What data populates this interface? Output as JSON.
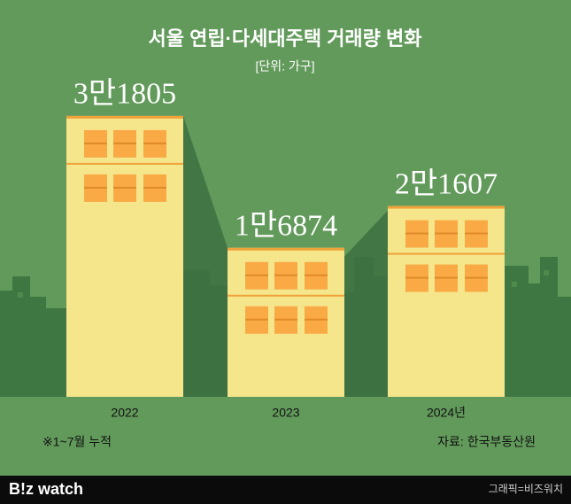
{
  "chart_data": {
    "type": "bar",
    "title": "서울 연립·다세대주택 거래량 변화",
    "subtitle": "[단위: 가구]",
    "categories": [
      "2022",
      "2023",
      "2024년"
    ],
    "values": [
      31805,
      16874,
      21607
    ],
    "value_labels": [
      "3만1805",
      "1만6874",
      "2만1607"
    ],
    "color": "#f5e68c",
    "note": "※1~7월 누적",
    "source": "자료: 한국부동산원"
  },
  "footer": {
    "logo": "B!z watch",
    "credit": "그래픽=비즈워치"
  }
}
